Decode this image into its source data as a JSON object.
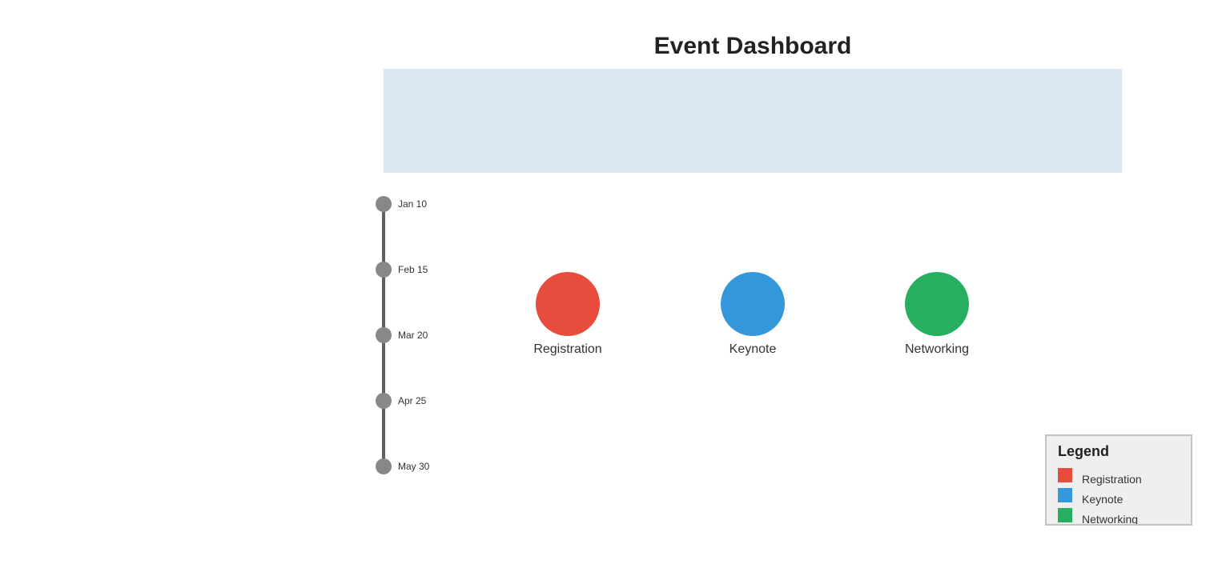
{
  "title": "Event Dashboard",
  "banner": {
    "color": "#dbe6f0"
  },
  "timeline": {
    "line_color": "#5f5f5f",
    "dot_color": "#888888",
    "items": [
      {
        "label": "Jan 10"
      },
      {
        "label": "Feb 15"
      },
      {
        "label": "Mar 20"
      },
      {
        "label": "Apr 25"
      },
      {
        "label": "May 30"
      }
    ]
  },
  "events": [
    {
      "label": "Registration",
      "color": "#e74c3c"
    },
    {
      "label": "Keynote",
      "color": "#3498db"
    },
    {
      "label": "Networking",
      "color": "#27ae60"
    }
  ],
  "legend": {
    "title": "Legend",
    "items": [
      {
        "label": "Registration",
        "color": "#e74c3c"
      },
      {
        "label": "Keynote",
        "color": "#3498db"
      },
      {
        "label": "Networking",
        "color": "#27ae60"
      }
    ]
  }
}
